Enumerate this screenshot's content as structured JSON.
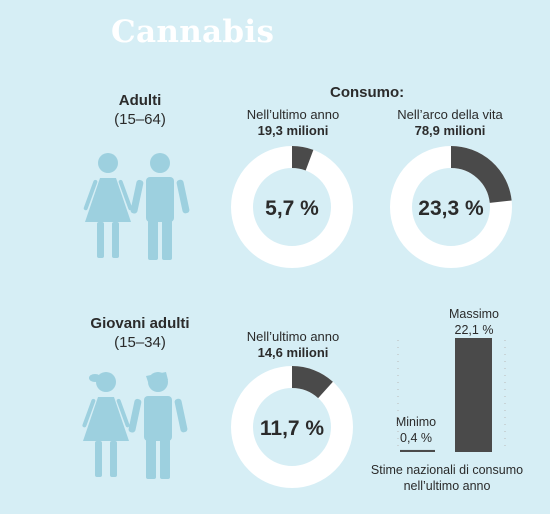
{
  "title": "Cannabis",
  "groups": [
    {
      "label": "Adulti",
      "range": "(15–64)"
    },
    {
      "label": "Giovani adulti",
      "range": "(15–34)"
    }
  ],
  "consumo_label": "Consumo:",
  "colors": {
    "background": "#d6eef5",
    "ring": "#ffffff",
    "segment": "#4a4a4a",
    "figure": "#9dd0df",
    "axis": "#b9b9b9"
  },
  "chart_data": [
    {
      "type": "pie",
      "caption": "Nell’ultimo anno",
      "count": "19,3 milioni",
      "label": "5,7 %",
      "values": [
        5.7,
        94.3
      ]
    },
    {
      "type": "pie",
      "caption": "Nell’arco della vita",
      "count": "78,9 milioni",
      "label": "23,3 %",
      "values": [
        23.3,
        76.7
      ]
    },
    {
      "type": "pie",
      "caption": "Nell’ultimo anno",
      "count": "14,6 milioni",
      "label": "11,7 %",
      "values": [
        11.7,
        88.3
      ]
    },
    {
      "type": "bar",
      "categories": [
        "Minimo",
        "Massimo"
      ],
      "labels": [
        "0,4 %",
        "22,1 %"
      ],
      "values": [
        0.4,
        22.1
      ],
      "xlabel": "Stime nazionali di consumo nell’ultimo anno",
      "ylim": [
        0,
        22.1
      ]
    }
  ]
}
